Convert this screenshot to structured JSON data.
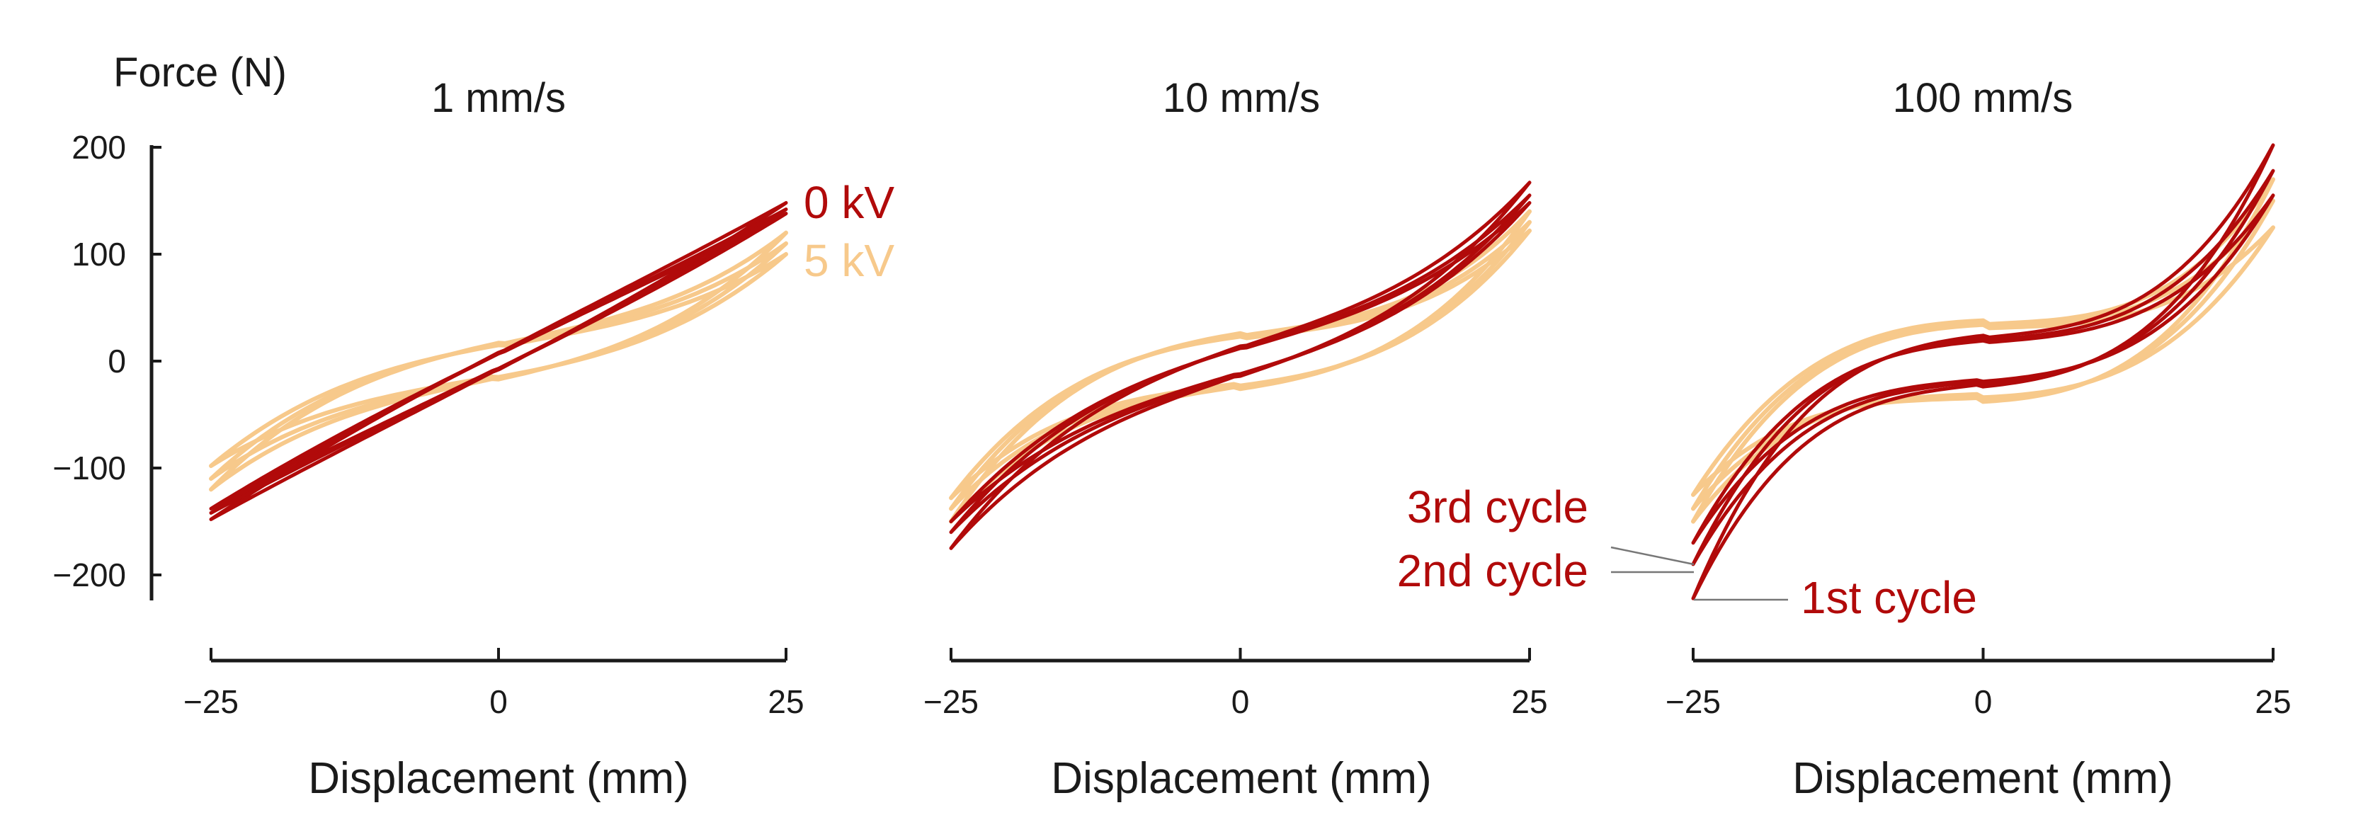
{
  "colors": {
    "kv0": "#b10a0a",
    "kv5": "#f7c98b",
    "axis": "#1a1a1a"
  },
  "chart_data": {
    "type": "line",
    "description_kind": "force-displacement hysteresis loops",
    "ylabel": "Force (N)",
    "xlabel": "Displacement (mm)",
    "xlim": [
      -25,
      25
    ],
    "ylim": [
      -220,
      200
    ],
    "xticks": [
      -25,
      0,
      25
    ],
    "yticks": [
      200,
      100,
      0,
      -100,
      -200
    ],
    "ytick_labels": [
      "200",
      "100",
      "0",
      "−100",
      "−200"
    ],
    "xtick_labels": [
      "−25",
      "0",
      "25"
    ],
    "grid": false,
    "legend": [
      {
        "label": "0 kV",
        "color": "#b10a0a"
      },
      {
        "label": "5 kV",
        "color": "#f7c98b"
      }
    ],
    "cycle_annotations": [
      "3rd cycle",
      "2nd cycle",
      "1st cycle"
    ],
    "panels": [
      {
        "title": "1 mm/s",
        "series": [
          {
            "name": "5 kV",
            "color": "#f7c98b",
            "loops": [
              {
                "cycle": 1,
                "f_max": 120,
                "f_min": -120,
                "lin": 0.5,
                "hyst": 17
              },
              {
                "cycle": 2,
                "f_max": 110,
                "f_min": -110,
                "lin": 0.5,
                "hyst": 16
              },
              {
                "cycle": 3,
                "f_max": 100,
                "f_min": -98,
                "lin": 0.5,
                "hyst": 15
              }
            ]
          },
          {
            "name": "0 kV",
            "color": "#b10a0a",
            "loops": [
              {
                "cycle": 1,
                "f_max": 148,
                "f_min": -148,
                "lin": 0.95,
                "hyst": 8
              },
              {
                "cycle": 2,
                "f_max": 142,
                "f_min": -142,
                "lin": 0.95,
                "hyst": 7
              },
              {
                "cycle": 3,
                "f_max": 138,
                "f_min": -138,
                "lin": 0.95,
                "hyst": 7
              }
            ]
          }
        ]
      },
      {
        "title": "10 mm/s",
        "series": [
          {
            "name": "5 kV",
            "color": "#f7c98b",
            "loops": [
              {
                "cycle": 1,
                "f_max": 140,
                "f_min": -150,
                "lin": 0.3,
                "hyst": 26
              },
              {
                "cycle": 2,
                "f_max": 130,
                "f_min": -138,
                "lin": 0.3,
                "hyst": 24
              },
              {
                "cycle": 3,
                "f_max": 122,
                "f_min": -128,
                "lin": 0.3,
                "hyst": 23
              }
            ]
          },
          {
            "name": "0 kV",
            "color": "#b10a0a",
            "loops": [
              {
                "cycle": 1,
                "f_max": 167,
                "f_min": -175,
                "lin": 0.55,
                "hyst": 14
              },
              {
                "cycle": 2,
                "f_max": 155,
                "f_min": -160,
                "lin": 0.55,
                "hyst": 13
              },
              {
                "cycle": 3,
                "f_max": 148,
                "f_min": -150,
                "lin": 0.55,
                "hyst": 12
              }
            ]
          }
        ]
      },
      {
        "title": "100 mm/s",
        "series": [
          {
            "name": "5 kV",
            "color": "#f7c98b",
            "loops": [
              {
                "cycle": 1,
                "f_max": 170,
                "f_min": -125,
                "lin": 0.1,
                "hyst": 38
              },
              {
                "cycle": 2,
                "f_max": 150,
                "f_min": -138,
                "lin": 0.1,
                "hyst": 36
              },
              {
                "cycle": 3,
                "f_max": 125,
                "f_min": -150,
                "lin": 0.1,
                "hyst": 34
              }
            ]
          },
          {
            "name": "0 kV",
            "color": "#b10a0a",
            "loops": [
              {
                "cycle": 1,
                "f_max": 202,
                "f_min": -222,
                "lin": 0.15,
                "hyst": 24
              },
              {
                "cycle": 2,
                "f_max": 178,
                "f_min": -190,
                "lin": 0.15,
                "hyst": 21
              },
              {
                "cycle": 3,
                "f_max": 155,
                "f_min": -170,
                "lin": 0.15,
                "hyst": 19
              }
            ]
          }
        ]
      }
    ]
  }
}
